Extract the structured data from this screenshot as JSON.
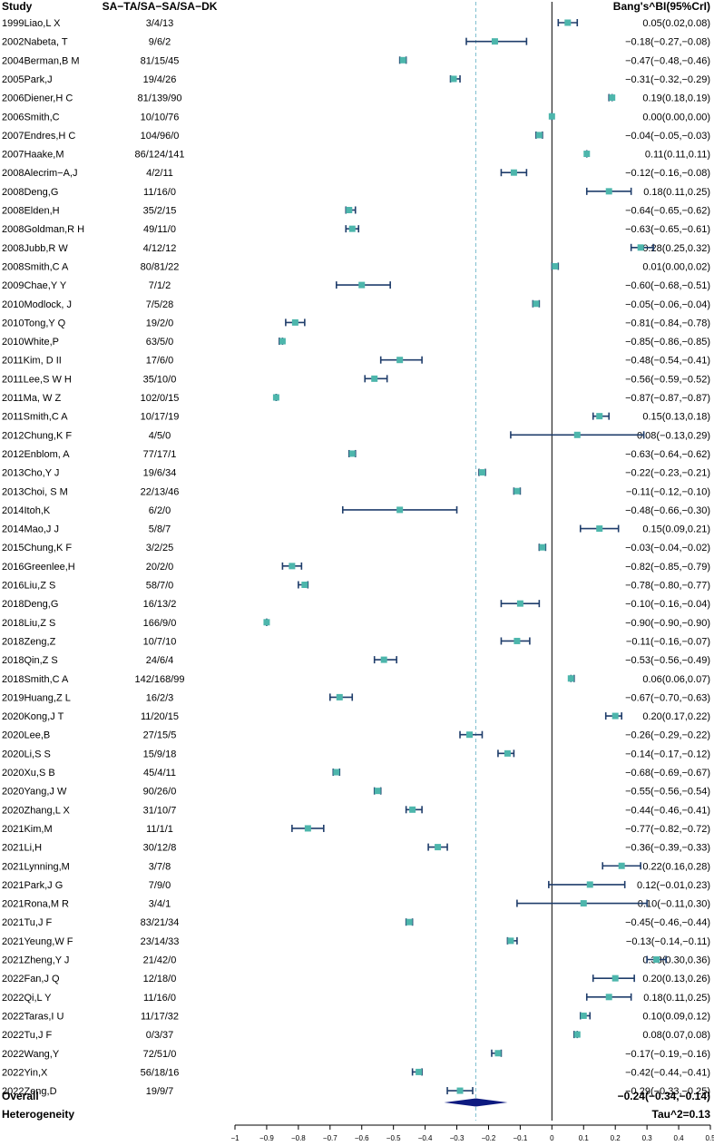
{
  "chart_data": {
    "type": "forest",
    "headers": {
      "study": "Study",
      "counts": "SA−TA/SA−SA/SA−DK",
      "estimate": "Bang's^BI(95%CrI)"
    },
    "studies": [
      {
        "study": "1999Liao,L X",
        "counts": "3/4/13",
        "est": 0.05,
        "lo": 0.02,
        "hi": 0.08,
        "label": "0.05(0.02,0.08)"
      },
      {
        "study": "2002Nabeta, T",
        "counts": "9/6/2",
        "est": -0.18,
        "lo": -0.27,
        "hi": -0.08,
        "label": "−0.18(−0.27,−0.08)"
      },
      {
        "study": "2004Berman,B M",
        "counts": "81/15/45",
        "est": -0.47,
        "lo": -0.48,
        "hi": -0.46,
        "label": "−0.47(−0.48,−0.46)"
      },
      {
        "study": "2005Park,J",
        "counts": "19/4/26",
        "est": -0.31,
        "lo": -0.32,
        "hi": -0.29,
        "label": "−0.31(−0.32,−0.29)"
      },
      {
        "study": "2006Diener,H C",
        "counts": "81/139/90",
        "est": 0.19,
        "lo": 0.18,
        "hi": 0.19,
        "label": "0.19(0.18,0.19)"
      },
      {
        "study": "2006Smith,C",
        "counts": "10/10/76",
        "est": 0.0,
        "lo": 0.0,
        "hi": 0.0,
        "label": "0.00(0.00,0.00)"
      },
      {
        "study": "2007Endres,H C",
        "counts": "104/96/0",
        "est": -0.04,
        "lo": -0.05,
        "hi": -0.03,
        "label": "−0.04(−0.05,−0.03)"
      },
      {
        "study": "2007Haake,M",
        "counts": "86/124/141",
        "est": 0.11,
        "lo": 0.11,
        "hi": 0.11,
        "label": "0.11(0.11,0.11)"
      },
      {
        "study": "2008Alecrim−A,J",
        "counts": "4/2/11",
        "est": -0.12,
        "lo": -0.16,
        "hi": -0.08,
        "label": "−0.12(−0.16,−0.08)"
      },
      {
        "study": "2008Deng,G",
        "counts": "11/16/0",
        "est": 0.18,
        "lo": 0.11,
        "hi": 0.25,
        "label": "0.18(0.11,0.25)"
      },
      {
        "study": "2008Elden,H",
        "counts": "35/2/15",
        "est": -0.64,
        "lo": -0.65,
        "hi": -0.62,
        "label": "−0.64(−0.65,−0.62)"
      },
      {
        "study": "2008Goldman,R H",
        "counts": "49/11/0",
        "est": -0.63,
        "lo": -0.65,
        "hi": -0.61,
        "label": "−0.63(−0.65,−0.61)"
      },
      {
        "study": "2008Jubb,R W",
        "counts": "4/12/12",
        "est": 0.28,
        "lo": 0.25,
        "hi": 0.32,
        "label": "0.28(0.25,0.32)"
      },
      {
        "study": "2008Smith,C A",
        "counts": "80/81/22",
        "est": 0.01,
        "lo": 0.0,
        "hi": 0.02,
        "label": "0.01(0.00,0.02)"
      },
      {
        "study": "2009Chae,Y Y",
        "counts": "7/1/2",
        "est": -0.6,
        "lo": -0.68,
        "hi": -0.51,
        "label": "−0.60(−0.68,−0.51)"
      },
      {
        "study": "2010Modlock, J",
        "counts": "7/5/28",
        "est": -0.05,
        "lo": -0.06,
        "hi": -0.04,
        "label": "−0.05(−0.06,−0.04)"
      },
      {
        "study": "2010Tong,Y Q",
        "counts": "19/2/0",
        "est": -0.81,
        "lo": -0.84,
        "hi": -0.78,
        "label": "−0.81(−0.84,−0.78)"
      },
      {
        "study": "2010White,P",
        "counts": "63/5/0",
        "est": -0.85,
        "lo": -0.86,
        "hi": -0.85,
        "label": "−0.85(−0.86,−0.85)"
      },
      {
        "study": "2011Kim, D II",
        "counts": "17/6/0",
        "est": -0.48,
        "lo": -0.54,
        "hi": -0.41,
        "label": "−0.48(−0.54,−0.41)"
      },
      {
        "study": "2011Lee,S W H",
        "counts": "35/10/0",
        "est": -0.56,
        "lo": -0.59,
        "hi": -0.52,
        "label": "−0.56(−0.59,−0.52)"
      },
      {
        "study": "2011Ma, W Z",
        "counts": "102/0/15",
        "est": -0.87,
        "lo": -0.87,
        "hi": -0.87,
        "label": "−0.87(−0.87,−0.87)"
      },
      {
        "study": "2011Smith,C A",
        "counts": "10/17/19",
        "est": 0.15,
        "lo": 0.13,
        "hi": 0.18,
        "label": "0.15(0.13,0.18)"
      },
      {
        "study": "2012Chung,K F",
        "counts": "4/5/0",
        "est": 0.08,
        "lo": -0.13,
        "hi": 0.29,
        "label": "0.08(−0.13,0.29)"
      },
      {
        "study": "2012Enblom, A",
        "counts": "77/17/1",
        "est": -0.63,
        "lo": -0.64,
        "hi": -0.62,
        "label": "−0.63(−0.64,−0.62)"
      },
      {
        "study": "2013Cho,Y J",
        "counts": "19/6/34",
        "est": -0.22,
        "lo": -0.23,
        "hi": -0.21,
        "label": "−0.22(−0.23,−0.21)"
      },
      {
        "study": "2013Choi, S M",
        "counts": "22/13/46",
        "est": -0.11,
        "lo": -0.12,
        "hi": -0.1,
        "label": "−0.11(−0.12,−0.10)"
      },
      {
        "study": "2014Itoh,K",
        "counts": "6/2/0",
        "est": -0.48,
        "lo": -0.66,
        "hi": -0.3,
        "label": "−0.48(−0.66,−0.30)"
      },
      {
        "study": "2014Mao,J J",
        "counts": "5/8/7",
        "est": 0.15,
        "lo": 0.09,
        "hi": 0.21,
        "label": "0.15(0.09,0.21)"
      },
      {
        "study": "2015Chung,K F",
        "counts": "3/2/25",
        "est": -0.03,
        "lo": -0.04,
        "hi": -0.02,
        "label": "−0.03(−0.04,−0.02)"
      },
      {
        "study": "2016Greenlee,H",
        "counts": "20/2/0",
        "est": -0.82,
        "lo": -0.85,
        "hi": -0.79,
        "label": "−0.82(−0.85,−0.79)"
      },
      {
        "study": "2016Liu,Z S",
        "counts": "58/7/0",
        "est": -0.78,
        "lo": -0.8,
        "hi": -0.77,
        "label": "−0.78(−0.80,−0.77)"
      },
      {
        "study": "2018Deng,G",
        "counts": "16/13/2",
        "est": -0.1,
        "lo": -0.16,
        "hi": -0.04,
        "label": "−0.10(−0.16,−0.04)"
      },
      {
        "study": "2018Liu,Z S",
        "counts": "166/9/0",
        "est": -0.9,
        "lo": -0.9,
        "hi": -0.9,
        "label": "−0.90(−0.90,−0.90)"
      },
      {
        "study": "2018Zeng,Z",
        "counts": "10/7/10",
        "est": -0.11,
        "lo": -0.16,
        "hi": -0.07,
        "label": "−0.11(−0.16,−0.07)"
      },
      {
        "study": "2018Qin,Z S",
        "counts": "24/6/4",
        "est": -0.53,
        "lo": -0.56,
        "hi": -0.49,
        "label": "−0.53(−0.56,−0.49)"
      },
      {
        "study": "2018Smith,C A",
        "counts": "142/168/99",
        "est": 0.06,
        "lo": 0.06,
        "hi": 0.07,
        "label": "0.06(0.06,0.07)"
      },
      {
        "study": "2019Huang,Z L",
        "counts": "16/2/3",
        "est": -0.67,
        "lo": -0.7,
        "hi": -0.63,
        "label": "−0.67(−0.70,−0.63)"
      },
      {
        "study": "2020Kong,J T",
        "counts": "11/20/15",
        "est": 0.2,
        "lo": 0.17,
        "hi": 0.22,
        "label": "0.20(0.17,0.22)"
      },
      {
        "study": "2020Lee,B",
        "counts": "27/15/5",
        "est": -0.26,
        "lo": -0.29,
        "hi": -0.22,
        "label": "−0.26(−0.29,−0.22)"
      },
      {
        "study": "2020Li,S S",
        "counts": "15/9/18",
        "est": -0.14,
        "lo": -0.17,
        "hi": -0.12,
        "label": "−0.14(−0.17,−0.12)"
      },
      {
        "study": "2020Xu,S B",
        "counts": "45/4/11",
        "est": -0.68,
        "lo": -0.69,
        "hi": -0.67,
        "label": "−0.68(−0.69,−0.67)"
      },
      {
        "study": "2020Yang,J W",
        "counts": "90/26/0",
        "est": -0.55,
        "lo": -0.56,
        "hi": -0.54,
        "label": "−0.55(−0.56,−0.54)"
      },
      {
        "study": "2020Zhang,L X",
        "counts": "31/10/7",
        "est": -0.44,
        "lo": -0.46,
        "hi": -0.41,
        "label": "−0.44(−0.46,−0.41)"
      },
      {
        "study": "2021Kim,M",
        "counts": "11/1/1",
        "est": -0.77,
        "lo": -0.82,
        "hi": -0.72,
        "label": "−0.77(−0.82,−0.72)"
      },
      {
        "study": "2021Li,H",
        "counts": "30/12/8",
        "est": -0.36,
        "lo": -0.39,
        "hi": -0.33,
        "label": "−0.36(−0.39,−0.33)"
      },
      {
        "study": "2021Lynning,M",
        "counts": "3/7/8",
        "est": 0.22,
        "lo": 0.16,
        "hi": 0.28,
        "label": "0.22(0.16,0.28)"
      },
      {
        "study": "2021Park,J G",
        "counts": "7/9/0",
        "est": 0.12,
        "lo": -0.01,
        "hi": 0.23,
        "label": "0.12(−0.01,0.23)"
      },
      {
        "study": "2021Rona,M R",
        "counts": "3/4/1",
        "est": 0.1,
        "lo": -0.11,
        "hi": 0.3,
        "label": "0.10(−0.11,0.30)"
      },
      {
        "study": "2021Tu,J F",
        "counts": "83/21/34",
        "est": -0.45,
        "lo": -0.46,
        "hi": -0.44,
        "label": "−0.45(−0.46,−0.44)"
      },
      {
        "study": "2021Yeung,W F",
        "counts": "23/14/33",
        "est": -0.13,
        "lo": -0.14,
        "hi": -0.11,
        "label": "−0.13(−0.14,−0.11)"
      },
      {
        "study": "2021Zheng,Y J",
        "counts": "21/42/0",
        "est": 0.33,
        "lo": 0.3,
        "hi": 0.36,
        "label": "0.33(0.30,0.36)"
      },
      {
        "study": "2022Fan,J Q",
        "counts": "12/18/0",
        "est": 0.2,
        "lo": 0.13,
        "hi": 0.26,
        "label": "0.20(0.13,0.26)"
      },
      {
        "study": "2022Qi,L Y",
        "counts": "11/16/0",
        "est": 0.18,
        "lo": 0.11,
        "hi": 0.25,
        "label": "0.18(0.11,0.25)"
      },
      {
        "study": "2022Taras,I U",
        "counts": "11/17/32",
        "est": 0.1,
        "lo": 0.09,
        "hi": 0.12,
        "label": "0.10(0.09,0.12)"
      },
      {
        "study": "2022Tu,J F",
        "counts": "0/3/37",
        "est": 0.08,
        "lo": 0.07,
        "hi": 0.08,
        "label": "0.08(0.07,0.08)"
      },
      {
        "study": "2022Wang,Y",
        "counts": "72/51/0",
        "est": -0.17,
        "lo": -0.19,
        "hi": -0.16,
        "label": "−0.17(−0.19,−0.16)"
      },
      {
        "study": "2022Yin,X",
        "counts": "56/18/16",
        "est": -0.42,
        "lo": -0.44,
        "hi": -0.41,
        "label": "−0.42(−0.44,−0.41)"
      },
      {
        "study": "2022Zeng,D",
        "counts": "19/9/7",
        "est": -0.29,
        "lo": -0.33,
        "hi": -0.25,
        "label": "−0.29(−0.33,−0.25)"
      }
    ],
    "overall": {
      "label": "Overall",
      "est": -0.24,
      "lo": -0.34,
      "hi": -0.14,
      "text": "−0.24(−0.34,−0.14)"
    },
    "heterogeneity": {
      "label": "Heterogeneity",
      "text": "Tau^2=0.13"
    },
    "reference_line": 0,
    "pooled_line": -0.24,
    "xlim": [
      -1,
      0.5
    ],
    "xticks": [
      -1,
      -0.9,
      -0.8,
      -0.7,
      -0.6,
      -0.5,
      -0.4,
      -0.3,
      -0.2,
      -0.1,
      0,
      0.1,
      0.2,
      0.3,
      0.4,
      0.5
    ],
    "xtick_labels": [
      "−1",
      "−0.9",
      "−0.8",
      "−0.7",
      "−0.6",
      "−0.5",
      "−0.4",
      "−0.3",
      "−0.2",
      "−0.1",
      "0",
      "0.1",
      "0.2",
      "0.3",
      "0.4",
      "0.5"
    ],
    "colors": {
      "point": "#4db6ac",
      "ci_line": "#1f3d6b",
      "diamond": "#0d1a80",
      "pooled_line": "#7fbfcf",
      "zero_line": "#000000"
    }
  }
}
